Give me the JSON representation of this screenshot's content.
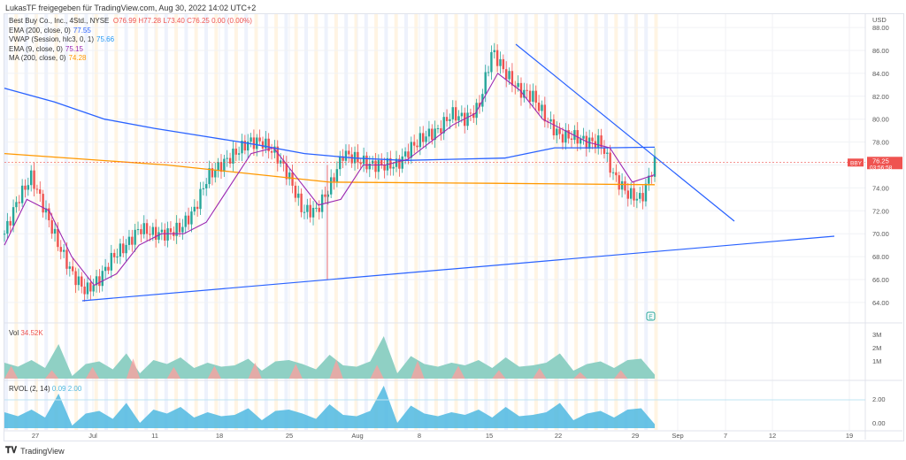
{
  "share_title": "LukasTF freigegeben für TradingView.com, Aug 30, 2022 14:02 UTC+2",
  "legend": {
    "symbol": "Best Buy Co., Inc., 4Std., NYSE",
    "open": "O76.99",
    "high": "H77.28",
    "low": "L73.40",
    "close": "C76.25",
    "change": "0.00 (0.00%)",
    "indicators": [
      {
        "label": "EMA (200, close, 0)",
        "value": "77.55",
        "color": "#2962ff"
      },
      {
        "label": "VWAP (Session, hlc3, 0, 1)",
        "value": "75.66",
        "color": "#2196f3"
      },
      {
        "label": "EMA (9, close, 0)",
        "value": "75.15",
        "color": "#9c27b0"
      },
      {
        "label": "MA (200, close, 0)",
        "value": "74.28",
        "color": "#ff9800"
      }
    ]
  },
  "volume": {
    "label": "Vol",
    "value": "34.52K",
    "axis": [
      "3M",
      "2M",
      "1M"
    ]
  },
  "rvol": {
    "label": "RVOL (2, 14)",
    "value1": "0.09",
    "value2": "2.00",
    "axis": [
      "2.00",
      "0.00"
    ]
  },
  "price_axis": {
    "currency": "USD",
    "ticks": [
      "88.00",
      "86.00",
      "84.00",
      "82.00",
      "80.00",
      "78.00",
      "74.00",
      "72.00",
      "70.00",
      "68.00",
      "66.00",
      "64.00"
    ],
    "last_price": "76.25",
    "countdown": "03:56:58",
    "symbol_badge": "BBY"
  },
  "time_axis": [
    "27",
    "Jul",
    "11",
    "18",
    "25",
    "Aug",
    "8",
    "15",
    "22",
    "29",
    "Sep",
    "7",
    "12",
    "19"
  ],
  "footer": "TradingView",
  "colors": {
    "up": "#26a69a",
    "down": "#ef5350",
    "ema200": "#2962ff",
    "ema9": "#9c27b0",
    "ma200": "#ff9800",
    "trend": "#2962ff",
    "rvol": "#4fb8e0"
  },
  "chart_data": {
    "type": "candlestick",
    "ylim": [
      63,
      88
    ],
    "price_path": [
      70,
      73,
      75,
      72,
      69,
      66.5,
      65,
      66,
      68,
      69,
      70.5,
      70,
      70,
      70.5,
      72,
      75,
      76,
      77,
      78,
      78,
      77,
      75,
      72,
      72,
      74,
      77,
      76.5,
      76,
      76,
      76,
      77.5,
      78.5,
      79,
      80.5,
      80,
      81,
      86,
      84,
      82.5,
      82,
      80,
      78.5,
      78.5,
      78,
      78,
      75,
      73.5,
      73,
      76.25
    ],
    "ema200": [
      82.7,
      81.5,
      80,
      79.2,
      78.5,
      77.8,
      77,
      76.6,
      76.4,
      76.5,
      76.6,
      77.5,
      77.5,
      77.55
    ],
    "ema9": [
      69,
      73,
      72,
      68,
      65.5,
      66.5,
      69,
      70,
      70,
      71,
      74,
      77,
      77.5,
      75,
      72.5,
      73,
      76,
      76,
      76.5,
      78,
      79.5,
      80.5,
      84,
      82.5,
      80,
      79,
      78,
      77.5,
      74.5,
      75.15
    ],
    "ma200": [
      77,
      76,
      74.5,
      74.4,
      74.28
    ],
    "volume": [
      1.2,
      0.9,
      1.4,
      0.8,
      2.6,
      0.2,
      1.1,
      1.3,
      0.7,
      1.9,
      0.4,
      1.4,
      1.1,
      1.6,
      0.8,
      1.2,
      0.9,
      1.0,
      1.5,
      0.6,
      1.3,
      1.4,
      1.1,
      0.7,
      1.8,
      1.0,
      0.9,
      1.3,
      3.2,
      0.4,
      1.7,
      1.1,
      0.9,
      1.2,
      1.0,
      1.4,
      0.8,
      1.6,
      0.9,
      1.0,
      1.2,
      1.9,
      0.6,
      1.1,
      1.3,
      0.8,
      1.4,
      1.5,
      0.3
    ]
  }
}
